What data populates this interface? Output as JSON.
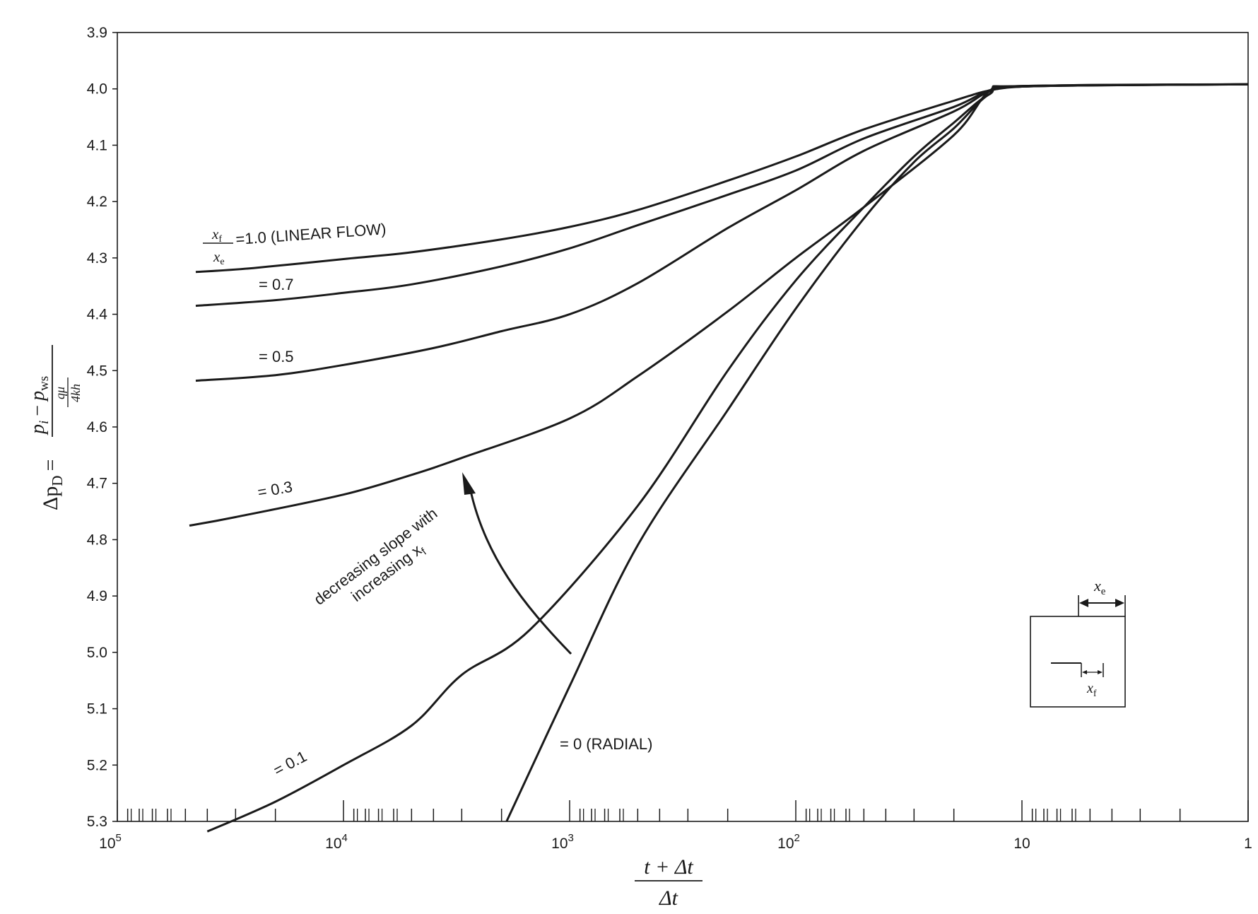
{
  "chart_data": {
    "type": "line",
    "x_axis": {
      "scale": "log",
      "reversed": true,
      "range": [
        100000,
        1
      ],
      "tick_labels": [
        {
          "value": 100000,
          "base": "10",
          "exp": "5"
        },
        {
          "value": 10000,
          "base": "10",
          "exp": "4"
        },
        {
          "value": 1000,
          "base": "10",
          "exp": "3"
        },
        {
          "value": 100,
          "base": "10",
          "exp": "2"
        },
        {
          "value": 10,
          "base": "10",
          "exp": ""
        },
        {
          "value": 1,
          "base": "1",
          "exp": ""
        }
      ],
      "label_numerator": "t + Δt",
      "label_denominator": "Δt"
    },
    "y_axis": {
      "reversed": true,
      "range": [
        3.9,
        5.3
      ],
      "ticks": [
        "3.9",
        "4.0",
        "4.1",
        "4.2",
        "4.3",
        "4.4",
        "4.5",
        "4.6",
        "4.7",
        "4.8",
        "4.9",
        "5.0",
        "5.1",
        "5.2",
        "5.3"
      ],
      "label_prefix": "Δp",
      "label_prefix_sub": "D",
      "label_eq": "=",
      "label_num_a": "p",
      "label_num_a_sub": "i",
      "label_num_minus": "−",
      "label_num_b": "p",
      "label_num_b_sub": "ws",
      "label_den_top": "qμ",
      "label_den_bottom": "4kh"
    },
    "grid": false,
    "series": [
      {
        "name": "=1.0 (LINEAR FLOW)",
        "x_over": "x",
        "x_over_sub": "f",
        "x_under": "x",
        "x_under_sub": "e",
        "points": [
          [
            45000,
            4.325
          ],
          [
            25000,
            4.318
          ],
          [
            10000,
            4.302
          ],
          [
            5000,
            4.29
          ],
          [
            2000,
            4.267
          ],
          [
            1000,
            4.245
          ],
          [
            500,
            4.215
          ],
          [
            200,
            4.163
          ],
          [
            100,
            4.12
          ],
          [
            50,
            4.072
          ],
          [
            20,
            4.021
          ],
          [
            14,
            4.003
          ],
          [
            10,
            3.996
          ],
          [
            5,
            3.993
          ],
          [
            1,
            3.992
          ]
        ]
      },
      {
        "name": "= 0.7",
        "points": [
          [
            45000,
            4.385
          ],
          [
            20000,
            4.375
          ],
          [
            10000,
            4.362
          ],
          [
            5000,
            4.347
          ],
          [
            2000,
            4.315
          ],
          [
            1000,
            4.283
          ],
          [
            500,
            4.242
          ],
          [
            200,
            4.188
          ],
          [
            100,
            4.145
          ],
          [
            50,
            4.088
          ],
          [
            20,
            4.032
          ],
          [
            14,
            4.003
          ],
          [
            10,
            3.995
          ],
          [
            1,
            3.992
          ]
        ]
      },
      {
        "name": "= 0.5",
        "points": [
          [
            45000,
            4.518
          ],
          [
            20000,
            4.508
          ],
          [
            10000,
            4.49
          ],
          [
            4000,
            4.46
          ],
          [
            2000,
            4.43
          ],
          [
            1000,
            4.4
          ],
          [
            500,
            4.345
          ],
          [
            200,
            4.247
          ],
          [
            100,
            4.18
          ],
          [
            50,
            4.11
          ],
          [
            20,
            4.04
          ],
          [
            14,
            4.005
          ],
          [
            10,
            3.995
          ],
          [
            1,
            3.992
          ]
        ]
      },
      {
        "name": "= 0.3",
        "points": [
          [
            48000,
            4.775
          ],
          [
            30000,
            4.76
          ],
          [
            10000,
            4.72
          ],
          [
            5000,
            4.685
          ],
          [
            3000,
            4.655
          ],
          [
            1000,
            4.585
          ],
          [
            500,
            4.51
          ],
          [
            200,
            4.395
          ],
          [
            100,
            4.3
          ],
          [
            50,
            4.21
          ],
          [
            20,
            4.082
          ],
          [
            14,
            4.005
          ],
          [
            10,
            3.995
          ],
          [
            1,
            3.992
          ]
        ]
      },
      {
        "name": "= 0.1",
        "points": [
          [
            40000,
            5.318
          ],
          [
            20000,
            5.265
          ],
          [
            10000,
            5.2
          ],
          [
            5000,
            5.13
          ],
          [
            3000,
            5.04
          ],
          [
            1500,
            4.96
          ],
          [
            500,
            4.74
          ],
          [
            200,
            4.5
          ],
          [
            100,
            4.34
          ],
          [
            50,
            4.21
          ],
          [
            30,
            4.12
          ],
          [
            20,
            4.06
          ],
          [
            14,
            4.01
          ],
          [
            10,
            3.996
          ],
          [
            1,
            3.992
          ]
        ]
      },
      {
        "name": "= 0 (RADIAL)",
        "points": [
          [
            1900,
            5.3
          ],
          [
            1000,
            5.06
          ],
          [
            500,
            4.81
          ],
          [
            200,
            4.57
          ],
          [
            100,
            4.39
          ],
          [
            50,
            4.23
          ],
          [
            30,
            4.13
          ],
          [
            20,
            4.07
          ],
          [
            14,
            4.01
          ],
          [
            10,
            3.996
          ],
          [
            1,
            3.992
          ]
        ]
      }
    ],
    "annotations": {
      "arrow_text_line1": "decreasing slope with",
      "arrow_text_line2": "increasing x",
      "arrow_text_line2_sub": "f",
      "inset_xe": "x",
      "inset_xe_sub": "e",
      "inset_xf": "x",
      "inset_xf_sub": "f"
    }
  }
}
